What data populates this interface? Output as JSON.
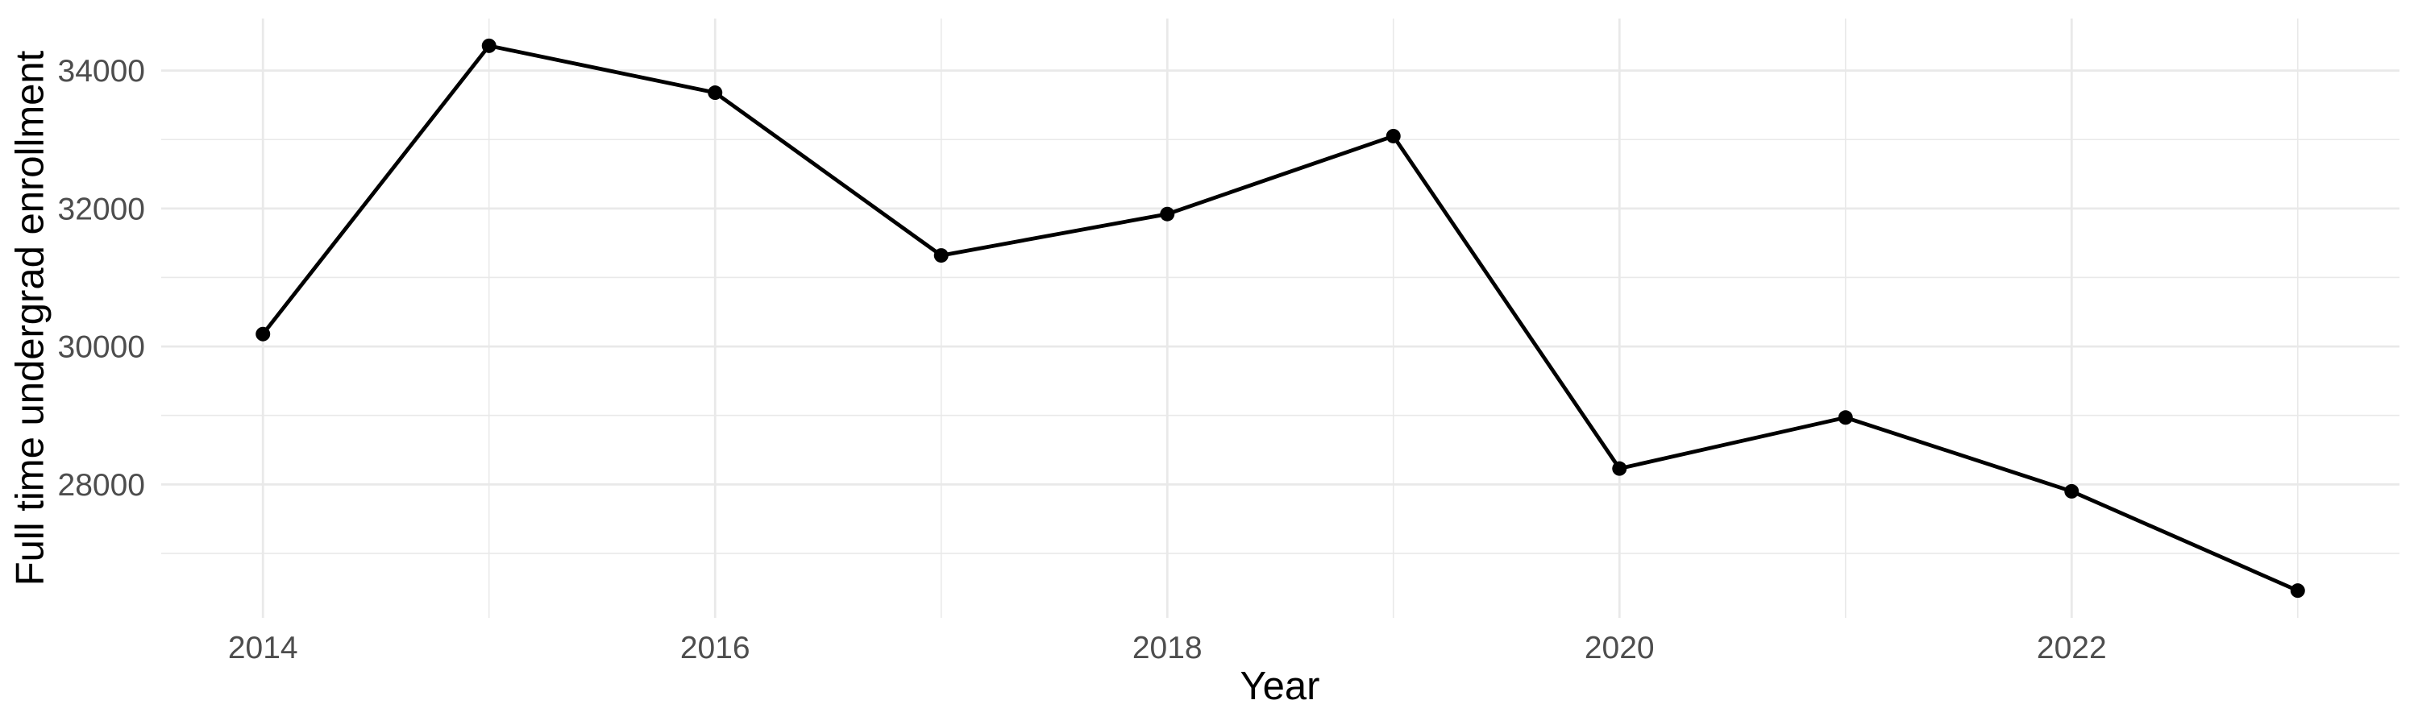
{
  "figure": {
    "background_color": "#FFFFFF",
    "gridline_color": "#E9E9E9",
    "tick_label_color": "#4D4D4D",
    "axis_title_color": "#000000",
    "line_color": "#000000",
    "point_color": "#000000"
  },
  "chart_data": {
    "type": "line",
    "xlabel": "Year",
    "ylabel": "Full time undergrad enrollment",
    "x": [
      2014,
      2015,
      2016,
      2017,
      2018,
      2019,
      2020,
      2021,
      2022,
      2023
    ],
    "values": [
      30180,
      34360,
      33680,
      31320,
      31920,
      33050,
      28230,
      28970,
      27900,
      26460
    ],
    "x_tick_labels": [
      "2014",
      "2016",
      "2018",
      "2020",
      "2022"
    ],
    "x_major_breaks": [
      2014,
      2016,
      2018,
      2020,
      2022
    ],
    "x_minor_breaks": [
      2015,
      2017,
      2019,
      2021,
      2023
    ],
    "y_tick_labels": [
      "28000",
      "30000",
      "32000",
      "34000"
    ],
    "y_major_breaks": [
      28000,
      30000,
      32000,
      34000
    ],
    "y_minor_breaks": [
      27000,
      29000,
      31000,
      33000
    ],
    "xlim": [
      2013.55,
      2023.45
    ],
    "ylim": [
      26065,
      34755
    ],
    "grid": "major+minor",
    "legend": "none",
    "marker": "point"
  }
}
